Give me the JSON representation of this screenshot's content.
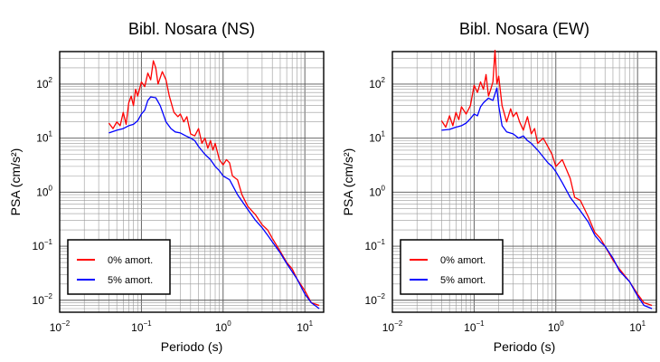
{
  "chart_data": [
    {
      "type": "line",
      "title": "Bibl. Nosara (NS)",
      "xlabel": "Periodo (s)",
      "ylabel": "PSA (cm/s²)",
      "xscale": "log",
      "yscale": "log",
      "xlim": [
        0.01,
        17
      ],
      "ylim": [
        0.006,
        400
      ],
      "xticks": [
        {
          "base": "10",
          "exp": "−2",
          "value": 0.01
        },
        {
          "base": "10",
          "exp": "−1",
          "value": 0.1
        },
        {
          "base": "10",
          "exp": "0",
          "value": 1
        },
        {
          "base": "10",
          "exp": "1",
          "value": 10
        }
      ],
      "yticks": [
        {
          "base": "10",
          "exp": "−2",
          "value": 0.01
        },
        {
          "base": "10",
          "exp": "−1",
          "value": 0.1
        },
        {
          "base": "10",
          "exp": "0",
          "value": 1
        },
        {
          "base": "10",
          "exp": "1",
          "value": 10
        },
        {
          "base": "10",
          "exp": "2",
          "value": 100
        }
      ],
      "grid": true,
      "legend_position": "bottom-left",
      "series": [
        {
          "name": "0% amort.",
          "color": "#ff0000",
          "x": [
            0.04,
            0.045,
            0.05,
            0.055,
            0.06,
            0.065,
            0.07,
            0.075,
            0.08,
            0.085,
            0.09,
            0.1,
            0.11,
            0.12,
            0.13,
            0.14,
            0.15,
            0.16,
            0.18,
            0.2,
            0.22,
            0.25,
            0.28,
            0.3,
            0.33,
            0.36,
            0.4,
            0.45,
            0.5,
            0.55,
            0.6,
            0.65,
            0.7,
            0.75,
            0.8,
            0.9,
            1.0,
            1.1,
            1.2,
            1.3,
            1.5,
            1.7,
            2.0,
            2.5,
            3.0,
            3.5,
            4.0,
            5.0,
            6.0,
            7.0,
            8.0,
            10.0,
            12.0,
            15.0
          ],
          "y": [
            19,
            15,
            20,
            17,
            30,
            18,
            45,
            60,
            40,
            80,
            60,
            110,
            90,
            160,
            120,
            270,
            200,
            100,
            170,
            120,
            60,
            30,
            25,
            28,
            20,
            25,
            12,
            11,
            15,
            8,
            10,
            6.5,
            9,
            6,
            8,
            4,
            3.2,
            4,
            3.5,
            2,
            1.7,
            0.9,
            0.55,
            0.38,
            0.25,
            0.2,
            0.14,
            0.08,
            0.05,
            0.038,
            0.025,
            0.015,
            0.009,
            0.008
          ]
        },
        {
          "name": "5% amort.",
          "color": "#0000ff",
          "x": [
            0.04,
            0.05,
            0.06,
            0.07,
            0.08,
            0.09,
            0.1,
            0.11,
            0.12,
            0.13,
            0.15,
            0.17,
            0.2,
            0.23,
            0.26,
            0.3,
            0.35,
            0.4,
            0.45,
            0.5,
            0.6,
            0.7,
            0.8,
            0.9,
            1.0,
            1.2,
            1.5,
            2.0,
            2.5,
            3.0,
            3.5,
            4.0,
            5.0,
            6.0,
            8.0,
            10.0,
            12.0,
            15.0
          ],
          "y": [
            12.5,
            14,
            15,
            17,
            18,
            21,
            28,
            33,
            50,
            58,
            56,
            40,
            20,
            15,
            13,
            12.5,
            11,
            10,
            9,
            7,
            5,
            4,
            3,
            2.5,
            2,
            1.7,
            0.9,
            0.48,
            0.3,
            0.22,
            0.16,
            0.12,
            0.075,
            0.048,
            0.025,
            0.013,
            0.009,
            0.007
          ]
        }
      ]
    },
    {
      "type": "line",
      "title": "Bibl. Nosara (EW)",
      "xlabel": "Periodo (s)",
      "ylabel": "PSA (cm/s²)",
      "xscale": "log",
      "yscale": "log",
      "xlim": [
        0.01,
        17
      ],
      "ylim": [
        0.006,
        400
      ],
      "xticks": [
        {
          "base": "10",
          "exp": "−2",
          "value": 0.01
        },
        {
          "base": "10",
          "exp": "−1",
          "value": 0.1
        },
        {
          "base": "10",
          "exp": "0",
          "value": 1
        },
        {
          "base": "10",
          "exp": "1",
          "value": 10
        }
      ],
      "yticks": [
        {
          "base": "10",
          "exp": "−2",
          "value": 0.01
        },
        {
          "base": "10",
          "exp": "−1",
          "value": 0.1
        },
        {
          "base": "10",
          "exp": "0",
          "value": 1
        },
        {
          "base": "10",
          "exp": "1",
          "value": 10
        },
        {
          "base": "10",
          "exp": "2",
          "value": 100
        }
      ],
      "grid": true,
      "legend_position": "bottom-left",
      "series": [
        {
          "name": "0% amort.",
          "color": "#ff0000",
          "x": [
            0.04,
            0.045,
            0.05,
            0.055,
            0.06,
            0.065,
            0.07,
            0.08,
            0.09,
            0.1,
            0.11,
            0.12,
            0.13,
            0.14,
            0.15,
            0.16,
            0.17,
            0.18,
            0.19,
            0.2,
            0.22,
            0.25,
            0.28,
            0.3,
            0.33,
            0.36,
            0.4,
            0.45,
            0.5,
            0.55,
            0.6,
            0.7,
            0.8,
            0.9,
            1.0,
            1.2,
            1.5,
            1.7,
            2.0,
            2.5,
            3.0,
            3.5,
            4.0,
            5.0,
            6.0,
            8.0,
            10.0,
            12.0,
            15.0
          ],
          "y": [
            21,
            16,
            26,
            17,
            30,
            22,
            38,
            28,
            40,
            95,
            70,
            110,
            80,
            150,
            60,
            80,
            110,
            420,
            100,
            140,
            40,
            20,
            35,
            25,
            30,
            20,
            14,
            25,
            12,
            15,
            8,
            10,
            7,
            5,
            3,
            4,
            1.8,
            0.8,
            0.7,
            0.35,
            0.18,
            0.14,
            0.1,
            0.055,
            0.038,
            0.022,
            0.013,
            0.009,
            0.008
          ]
        },
        {
          "name": "5% amort.",
          "color": "#0000ff",
          "x": [
            0.04,
            0.05,
            0.06,
            0.07,
            0.08,
            0.09,
            0.1,
            0.11,
            0.12,
            0.13,
            0.15,
            0.17,
            0.19,
            0.2,
            0.22,
            0.25,
            0.3,
            0.35,
            0.4,
            0.45,
            0.5,
            0.6,
            0.7,
            0.8,
            0.9,
            1.0,
            1.2,
            1.5,
            2.0,
            2.5,
            3.0,
            3.5,
            4.0,
            5.0,
            6.0,
            8.0,
            10.0,
            12.0,
            15.0
          ],
          "y": [
            14,
            14.5,
            16,
            17,
            19,
            23,
            28,
            26,
            38,
            45,
            55,
            50,
            85,
            40,
            17,
            13,
            12,
            10,
            11,
            9,
            8,
            6,
            4.5,
            3.5,
            3,
            2.4,
            1.5,
            0.8,
            0.45,
            0.28,
            0.16,
            0.12,
            0.1,
            0.06,
            0.035,
            0.022,
            0.012,
            0.008,
            0.007
          ]
        }
      ]
    }
  ]
}
